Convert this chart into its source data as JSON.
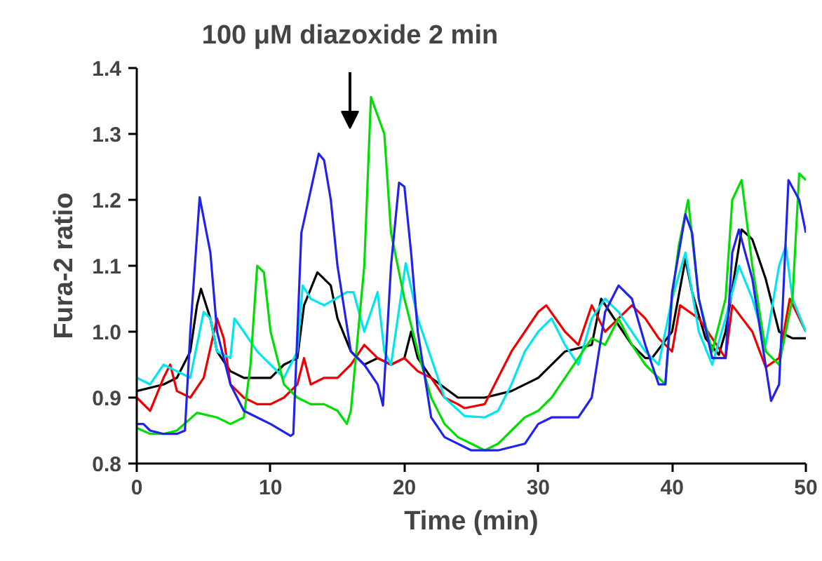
{
  "chart_data": {
    "type": "line",
    "xlabel": "Time (min)",
    "ylabel": "Fura-2 ratio",
    "annotations": [
      "100 μM diazoxide 2 min"
    ],
    "xlim": [
      0,
      50
    ],
    "xticks": [
      0,
      10,
      20,
      30,
      40,
      50
    ],
    "ylim": [
      0.8,
      1.4
    ],
    "yticks": [
      0.8,
      0.9,
      {
        "value": 1.0,
        "label": "1.0"
      },
      1.1,
      1.2,
      1.3,
      1.4
    ],
    "grid": false,
    "marker": "none",
    "line_style": "solid",
    "series": [
      {
        "color": "#000000",
        "x": [
          0,
          2,
          3,
          4,
          4.5,
          4.8,
          5.5,
          6,
          7,
          8,
          10,
          11,
          12,
          12.5,
          13.5,
          14.5,
          15,
          16,
          17,
          18,
          19,
          20,
          20.5,
          21,
          22,
          24,
          26,
          28,
          30,
          32,
          34,
          34.7,
          36,
          37,
          38,
          38.5,
          40,
          41,
          41.5,
          42.5,
          43.5,
          44,
          45.2,
          46,
          47,
          48,
          49,
          50
        ],
        "values": [
          0.91,
          0.92,
          0.93,
          0.97,
          1.04,
          1.065,
          1.02,
          0.97,
          0.94,
          0.93,
          0.93,
          0.95,
          0.96,
          1.04,
          1.09,
          1.07,
          1.02,
          0.97,
          0.95,
          0.96,
          0.95,
          0.96,
          1.0,
          0.96,
          0.93,
          0.9,
          0.9,
          0.91,
          0.93,
          0.97,
          0.98,
          1.05,
          1.01,
          0.98,
          0.96,
          0.96,
          1.0,
          1.11,
          1.06,
          0.99,
          0.965,
          1.0,
          1.155,
          1.14,
          1.08,
          1.0,
          0.99,
          0.99
        ]
      },
      {
        "color": "#ee0000",
        "x": [
          0,
          1,
          2,
          2.5,
          3,
          4,
          5,
          6,
          6.5,
          7,
          8,
          9,
          10,
          11,
          12,
          12.5,
          13,
          14,
          15,
          16,
          17,
          18,
          19,
          20,
          21,
          22,
          23,
          24,
          24.5,
          26,
          27,
          28,
          29,
          30,
          30.6,
          32,
          33,
          34,
          35,
          36,
          37,
          38,
          39,
          40,
          40.6,
          42,
          43,
          44,
          44.5,
          46,
          47,
          48,
          48.8,
          50
        ],
        "values": [
          0.9,
          0.88,
          0.93,
          0.95,
          0.91,
          0.9,
          0.93,
          1.02,
          0.99,
          0.92,
          0.9,
          0.89,
          0.89,
          0.9,
          0.92,
          0.96,
          0.92,
          0.93,
          0.93,
          0.95,
          0.98,
          0.96,
          0.95,
          0.96,
          0.94,
          0.93,
          0.9,
          0.89,
          0.884,
          0.89,
          0.93,
          0.97,
          1.0,
          1.03,
          1.04,
          1.0,
          0.98,
          1.04,
          1.0,
          1.02,
          1.04,
          1.02,
          0.99,
          0.97,
          1.04,
          1.02,
          0.99,
          0.96,
          1.04,
          1.0,
          0.946,
          0.96,
          1.05,
          1.0
        ]
      },
      {
        "color": "#00e5ee",
        "x": [
          0,
          1,
          2,
          3,
          4,
          5,
          5.5,
          6,
          7,
          7.3,
          8,
          9,
          10,
          11,
          12,
          12.4,
          13,
          14,
          15.7,
          16.2,
          17,
          18,
          18.5,
          19,
          20.1,
          21,
          22,
          23,
          24.5,
          26,
          27,
          28,
          29,
          30,
          31,
          32,
          33,
          34,
          35,
          36,
          37,
          38,
          39,
          40,
          41,
          42,
          43,
          44,
          45,
          46,
          47,
          48,
          48.5,
          49,
          50
        ],
        "values": [
          0.93,
          0.92,
          0.95,
          0.94,
          0.93,
          1.03,
          1.02,
          0.97,
          0.96,
          1.02,
          1.0,
          0.97,
          0.95,
          0.93,
          0.97,
          1.07,
          1.05,
          1.04,
          1.06,
          1.06,
          1.0,
          1.06,
          0.97,
          0.95,
          1.104,
          1.02,
          0.96,
          0.9,
          0.872,
          0.87,
          0.88,
          0.92,
          0.97,
          1.0,
          1.02,
          0.98,
          0.95,
          1.02,
          1.05,
          1.03,
          1.0,
          0.97,
          0.95,
          1.05,
          1.12,
          1.0,
          0.95,
          1.02,
          1.1,
          1.05,
          0.98,
          1.1,
          1.13,
          1.05,
          1.0
        ]
      },
      {
        "color": "#00dd00",
        "x": [
          0,
          1,
          2,
          3,
          4.5,
          6,
          7,
          8,
          8.5,
          9,
          9.5,
          10,
          11,
          12,
          13,
          14,
          15,
          15.7,
          16,
          17,
          17.5,
          18.5,
          19,
          20,
          21,
          22,
          23,
          24,
          25,
          26,
          27,
          28,
          29,
          30,
          31,
          32,
          33,
          34,
          35,
          36,
          37,
          38,
          39,
          39.5,
          40,
          40.5,
          41.2,
          42,
          43,
          44,
          44.5,
          45.2,
          46,
          47,
          48,
          49,
          49.5,
          50
        ],
        "values": [
          0.854,
          0.845,
          0.845,
          0.85,
          0.877,
          0.87,
          0.86,
          0.87,
          0.95,
          1.1,
          1.09,
          1.0,
          0.92,
          0.9,
          0.89,
          0.89,
          0.88,
          0.86,
          0.88,
          1.1,
          1.356,
          1.3,
          1.15,
          1.05,
          0.97,
          0.9,
          0.86,
          0.84,
          0.83,
          0.82,
          0.83,
          0.85,
          0.87,
          0.88,
          0.9,
          0.93,
          0.96,
          0.99,
          0.98,
          1.02,
          0.98,
          0.95,
          0.93,
          0.92,
          1.05,
          1.13,
          1.2,
          1.05,
          0.97,
          1.05,
          1.2,
          1.23,
          1.1,
          0.97,
          0.95,
          1.05,
          1.24,
          1.23
        ]
      },
      {
        "color": "#2222ee",
        "x": [
          0,
          0.5,
          1,
          2,
          3,
          3.6,
          4,
          4.7,
          5.5,
          6,
          7,
          8,
          9,
          10,
          11.5,
          11.7,
          12.3,
          13.6,
          14,
          14.5,
          15,
          16,
          17,
          18,
          18.4,
          19,
          19.6,
          20,
          20.5,
          21,
          22,
          23,
          25,
          27,
          28,
          29,
          30,
          31,
          32,
          33,
          34,
          35,
          36,
          37,
          38,
          39,
          39.5,
          40,
          41,
          41.5,
          42,
          43,
          44,
          44.5,
          45,
          46,
          47.4,
          48,
          48.7,
          49.5,
          50
        ],
        "values": [
          0.86,
          0.86,
          0.85,
          0.845,
          0.845,
          0.85,
          1.0,
          1.204,
          1.12,
          1.0,
          0.92,
          0.88,
          0.87,
          0.86,
          0.842,
          0.845,
          1.15,
          1.27,
          1.26,
          1.2,
          1.1,
          0.97,
          0.95,
          0.92,
          0.888,
          1.1,
          1.226,
          1.22,
          1.12,
          1.0,
          0.87,
          0.84,
          0.82,
          0.82,
          0.825,
          0.83,
          0.86,
          0.87,
          0.87,
          0.87,
          0.9,
          1.03,
          1.07,
          1.05,
          0.98,
          0.92,
          0.92,
          1.06,
          1.178,
          1.15,
          1.05,
          0.96,
          0.96,
          1.12,
          1.155,
          1.08,
          0.895,
          0.92,
          1.23,
          1.2,
          1.15
        ]
      }
    ]
  }
}
